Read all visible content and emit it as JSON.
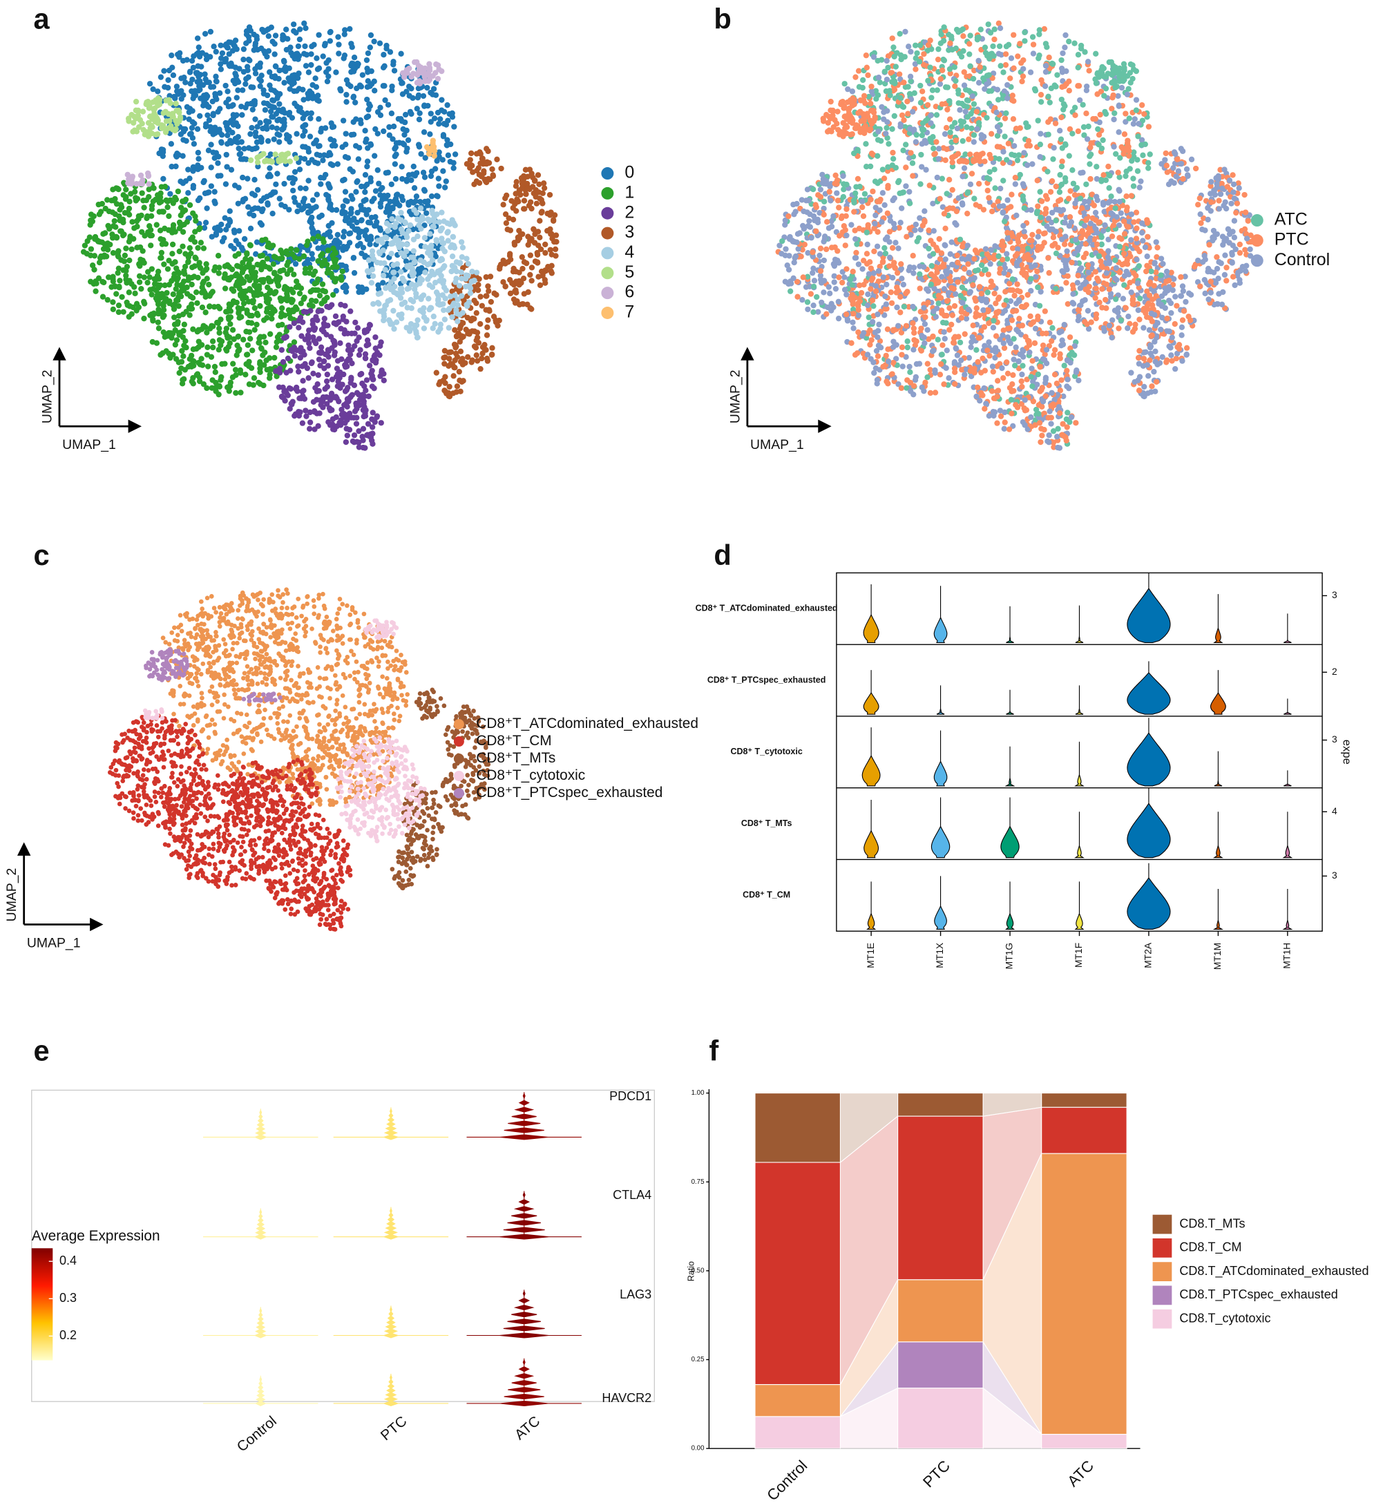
{
  "chart_data": [
    {
      "type": "scatter",
      "panel": "a",
      "xlabel": "UMAP_1",
      "ylabel": "UMAP_2",
      "series": [
        {
          "name": "0",
          "color": "#1F77B4"
        },
        {
          "name": "1",
          "color": "#2CA02C"
        },
        {
          "name": "2",
          "color": "#6A3D9A"
        },
        {
          "name": "3",
          "color": "#B15928"
        },
        {
          "name": "4",
          "color": "#A6CEE3"
        },
        {
          "name": "5",
          "color": "#B2DF8A"
        },
        {
          "name": "6",
          "color": "#CAB2D6"
        },
        {
          "name": "7",
          "color": "#FDBF6F"
        }
      ]
    },
    {
      "type": "scatter",
      "panel": "b",
      "xlabel": "UMAP_1",
      "ylabel": "UMAP_2",
      "series": [
        {
          "name": "ATC",
          "color": "#66C2A5"
        },
        {
          "name": "PTC",
          "color": "#FC8D62"
        },
        {
          "name": "Control",
          "color": "#8DA0CB"
        }
      ]
    },
    {
      "type": "scatter",
      "panel": "c",
      "xlabel": "UMAP_1",
      "ylabel": "UMAP_2",
      "series": [
        {
          "name": "CD8⁺T_ATCdominated_exhausted",
          "color": "#EE9550"
        },
        {
          "name": "CD8⁺T_CM",
          "color": "#D2352B"
        },
        {
          "name": "CD8⁺T_MTs",
          "color": "#9C5A33"
        },
        {
          "name": "CD8⁺T_cytotoxic",
          "color": "#F5CDE1"
        },
        {
          "name": "CD8⁺T_PTCspec_exhausted",
          "color": "#B084BD"
        }
      ]
    },
    {
      "type": "violin",
      "panel": "d",
      "ylabel": "expe",
      "categories": [
        "MT1E",
        "MT1X",
        "MT1G",
        "MT1F",
        "MT2A",
        "MT1M",
        "MT1H"
      ],
      "colors": [
        "#E69F00",
        "#56B4E9",
        "#009E73",
        "#F0E442",
        "#0072B2",
        "#D55E00",
        "#CC79A7"
      ],
      "rows": [
        {
          "name": "CD8⁺ T_ATCdominated_exhausted",
          "ylim": [
            0,
            4.4
          ],
          "yticks": [
            3
          ],
          "values": [
            3.7,
            3.6,
            2.35,
            2.4,
            4.4,
            3.1,
            1.9
          ]
        },
        {
          "name": "CD8⁺ T_PTCspec_exhausted",
          "ylim": [
            0,
            3.26
          ],
          "yticks": [
            2
          ],
          "values": [
            2.1,
            1.4,
            1.2,
            1.4,
            2.5,
            2.1,
            0.8
          ]
        },
        {
          "name": "CD8⁺ T_cytotoxic",
          "ylim": [
            0,
            4.5
          ],
          "yticks": [
            3
          ],
          "values": [
            3.8,
            3.6,
            2.6,
            2.9,
            4.4,
            2.3,
            1.1
          ]
        },
        {
          "name": "CD8⁺ T_MTs",
          "ylim": [
            0,
            6
          ],
          "yticks": [
            4
          ],
          "values": [
            5.0,
            5.2,
            5.2,
            4.0,
            6.0,
            4.0,
            4.0
          ]
        },
        {
          "name": "CD8⁺ T_CM",
          "ylim": [
            0,
            3.9
          ],
          "yticks": [
            3
          ],
          "values": [
            2.7,
            3.0,
            2.7,
            2.7,
            3.7,
            2.3,
            2.3
          ]
        }
      ]
    },
    {
      "type": "violin_heat",
      "panel": "e",
      "categories": [
        "Control",
        "PTC",
        "ATC"
      ],
      "genes": [
        "PDCD1",
        "CTLA4",
        "LAG3",
        "HAVCR2"
      ],
      "values": [
        [
          0.16,
          0.18,
          0.42
        ],
        [
          0.16,
          0.18,
          0.43
        ],
        [
          0.16,
          0.18,
          0.43
        ],
        [
          0.15,
          0.18,
          0.42
        ]
      ],
      "colorbar": {
        "title": "Average Expression",
        "clim": [
          0.135,
          0.435
        ],
        "ticks": [
          0.2,
          0.3,
          0.4
        ],
        "colors": [
          "#FFFFCC",
          "#FFC300",
          "#FF1A00",
          "#800000"
        ]
      }
    },
    {
      "type": "stacked_bar",
      "panel": "f",
      "ylabel": "Ratio",
      "categories": [
        "Control",
        "PTC",
        "ATC"
      ],
      "ylim": [
        0,
        1
      ],
      "yticks": [
        {
          "value": 0,
          "label": "0.00"
        },
        {
          "value": 0.25,
          "label": "0.25"
        },
        {
          "value": 0.5,
          "label": "0.50"
        },
        {
          "value": 0.75,
          "label": "0.75"
        },
        {
          "value": 1,
          "label": "1.00"
        }
      ],
      "series": [
        {
          "name": "CD8.T_MTs",
          "color": "#9C5A33",
          "values": [
            0.195,
            0.065,
            0.04
          ]
        },
        {
          "name": "CD8.T_CM",
          "color": "#D2352B",
          "values": [
            0.625,
            0.46,
            0.13
          ]
        },
        {
          "name": "CD8.T_ATCdominated_exhausted",
          "color": "#EE9550",
          "values": [
            0.09,
            0.175,
            0.79
          ]
        },
        {
          "name": "CD8.T_PTCspec_exhausted",
          "color": "#B084BD",
          "values": [
            0,
            0.13,
            0
          ]
        },
        {
          "name": "CD8.T_cytotoxic",
          "color": "#F5CDE1",
          "values": [
            0.09,
            0.17,
            0.04
          ]
        }
      ]
    }
  ]
}
